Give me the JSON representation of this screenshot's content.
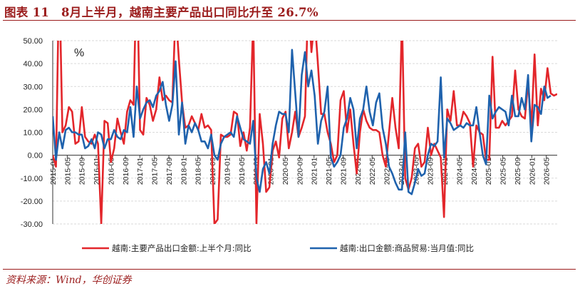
{
  "title": "图表 11　8月上半月，越南主要产品出口同比升至 26.7%",
  "source": "资料来源：Wind，华创证券",
  "colors": {
    "frame": "#9b1c1c",
    "series1": "#e3262b",
    "series2": "#1f62ad"
  },
  "chart_data": {
    "type": "line",
    "unit": "%",
    "ylim": [
      -30,
      50
    ],
    "yticks": [
      "-30.00",
      "-20.00",
      "-10.00",
      "0.00",
      "10.00",
      "20.00",
      "30.00",
      "40.00",
      "50.00"
    ],
    "ytick_values": [
      -30,
      -20,
      -10,
      0,
      10,
      20,
      30,
      40,
      50
    ],
    "x_start": "2015-01",
    "x_end": "2026-08",
    "xticks": [
      "2015-01",
      "2015-05",
      "2015-09",
      "2016-01",
      "2016-05",
      "2016-09",
      "2017-01",
      "2017-05",
      "2017-09",
      "2018-01",
      "2018-05",
      "2018-09",
      "2019-01",
      "2019-05",
      "2019-09",
      "2020-01",
      "2020-05",
      "2020-09",
      "2021-01",
      "2021-05",
      "2021-09",
      "2022-01",
      "2022-05",
      "2022-09",
      "2023-01",
      "2023-05",
      "2023-09",
      "2024-01",
      "2024-05",
      "2024-09",
      "2025-01",
      "2025-05",
      "2025-09",
      "2026-01",
      "2026-05"
    ],
    "legend_position": "bottom",
    "series": [
      {
        "name": "越南:主要产品出口金额:上半个月:同比",
        "color": "#e3262b",
        "values": [
          0,
          -5,
          80,
          10,
          13,
          21,
          19,
          5,
          6,
          21,
          8,
          6,
          5,
          9,
          5,
          -30,
          15,
          14,
          -3,
          3,
          16,
          10,
          5,
          19,
          24,
          22,
          85,
          11,
          9,
          25,
          22,
          15,
          20,
          34,
          24,
          26,
          24,
          23,
          64,
          42,
          23,
          12,
          13,
          17,
          14,
          11,
          18,
          12,
          13,
          11,
          -30,
          -28,
          9,
          8,
          8,
          9,
          19,
          18,
          4,
          10,
          2,
          12,
          60,
          -30,
          18,
          5,
          -16,
          -14,
          2,
          6,
          -1,
          16,
          19,
          3,
          10,
          19,
          8,
          12,
          17,
          70,
          45,
          60,
          40,
          18,
          18,
          10,
          5,
          -3,
          0,
          24,
          28,
          10,
          20,
          5,
          -8,
          10,
          20,
          15,
          12,
          11,
          11,
          10,
          0,
          -5,
          10,
          25,
          12,
          3,
          60,
          -10,
          -15,
          -10,
          3,
          5,
          -5,
          -3,
          12,
          0,
          5,
          2,
          -1,
          -27,
          20,
          15,
          28,
          13,
          13,
          19,
          17,
          14,
          -5,
          13,
          10,
          9,
          -2,
          -2,
          43,
          12,
          12,
          15,
          13,
          15,
          17,
          37,
          20,
          17,
          16,
          32,
          12,
          44,
          13,
          29,
          24,
          38,
          27,
          26,
          26.7
        ]
      },
      {
        "name": "越南:出口金额:商品贸易:当月值:同比",
        "color": "#1f62ad",
        "values": [
          17,
          -2,
          10,
          3,
          11,
          12,
          10,
          10,
          9,
          9,
          3,
          4,
          7,
          3,
          10,
          9,
          3,
          7,
          7,
          11,
          8,
          7,
          11,
          10,
          21,
          8,
          30,
          16,
          20,
          23,
          24,
          21,
          26,
          28,
          32,
          22,
          15,
          22,
          41,
          9,
          23,
          5,
          13,
          10,
          14,
          11,
          6,
          6,
          3,
          9,
          0,
          -2,
          5,
          8,
          9,
          10,
          8,
          17,
          12,
          7,
          6,
          5,
          15,
          -10,
          -16,
          -6,
          -3,
          -8,
          5,
          13,
          19,
          18,
          18,
          10,
          46,
          27,
          8,
          35,
          45,
          30,
          37,
          26,
          5,
          15,
          19,
          30,
          -1,
          -5,
          -3,
          0,
          12,
          16,
          25,
          20,
          3,
          16,
          20,
          30,
          19,
          13,
          23,
          27,
          12,
          5,
          -5,
          -8,
          -12,
          -15,
          -15,
          10,
          -16,
          -17,
          -12,
          -6,
          -9,
          -8,
          0,
          5,
          4,
          6,
          34,
          -1,
          16,
          14,
          11,
          12,
          13,
          12,
          14,
          13,
          13,
          21,
          10,
          0,
          -4,
          26,
          16,
          19,
          21,
          20,
          19,
          13,
          26,
          17,
          17,
          25,
          20,
          35,
          6,
          22,
          21,
          18,
          30,
          25,
          26
        ]
      }
    ]
  }
}
